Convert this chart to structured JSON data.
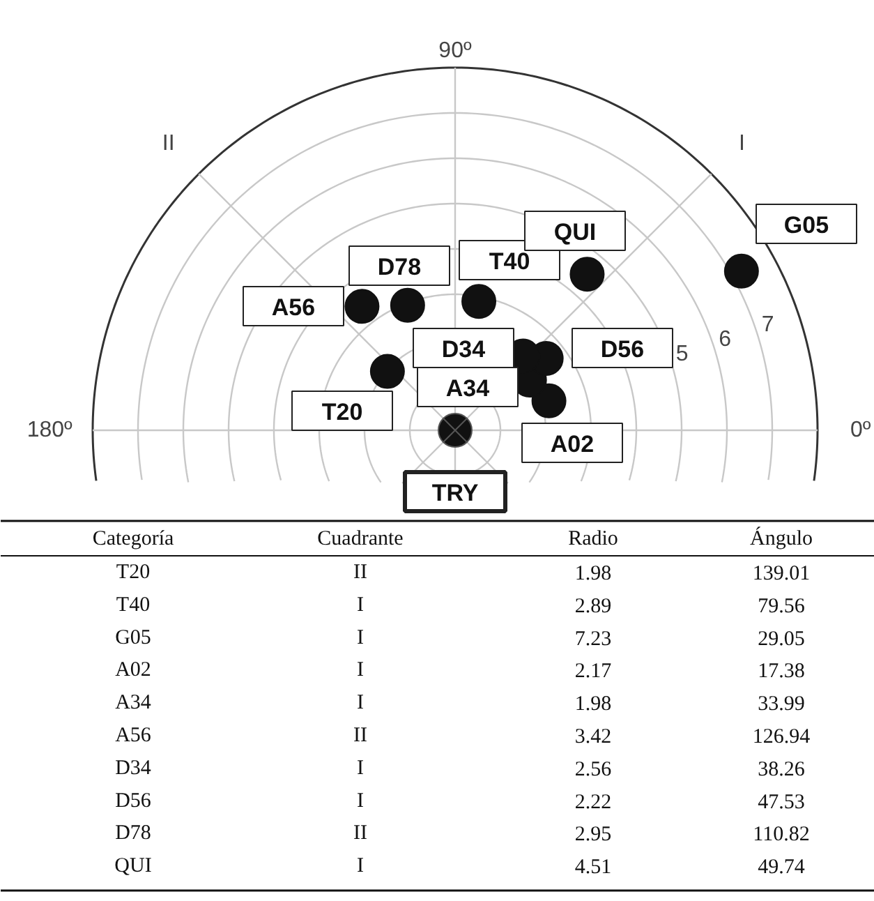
{
  "chart_data": {
    "type": "other",
    "categories": [
      "T20",
      "T40",
      "G05",
      "A02",
      "A34",
      "A56",
      "D34",
      "D56",
      "D78",
      "QUI"
    ],
    "values": [
      1.98,
      2.89,
      7.23,
      2.17,
      1.98,
      3.42,
      2.56,
      2.22,
      2.95,
      4.51
    ],
    "color": "#111111",
    "data_labels": true,
    "annotations": [
      "0º",
      "I",
      "90º",
      "II",
      "180º",
      "5",
      "6",
      "7",
      "TRY"
    ],
    "cell_labels": [
      [
        "Categoría",
        "Cuadrante",
        "Radio",
        "Ángulo"
      ],
      [
        "II",
        "139.01"
      ],
      [
        "I",
        "79.56"
      ],
      [
        "I",
        "29.05"
      ],
      [
        "I",
        "17.38"
      ],
      [
        "I",
        "33.99"
      ],
      [
        "II",
        "126.94"
      ],
      [
        "I",
        "38.26"
      ],
      [
        "I",
        "47.53"
      ],
      [
        "II",
        "110.82"
      ],
      [
        "I",
        "49.74"
      ]
    ]
  }
}
